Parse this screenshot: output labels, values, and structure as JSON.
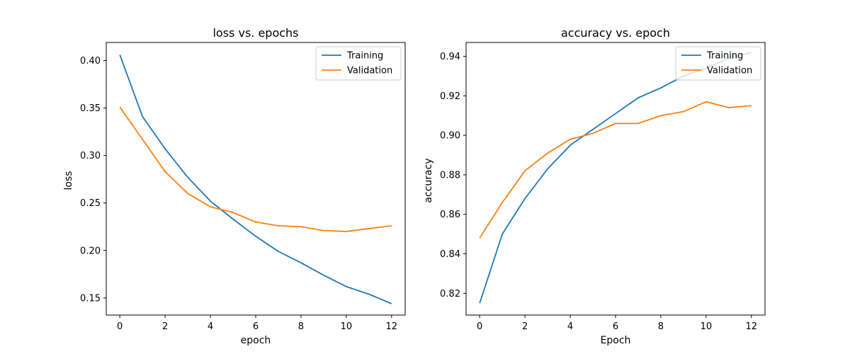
{
  "chart_data": [
    {
      "type": "line",
      "title": "loss vs. epochs",
      "xlabel": "epoch",
      "ylabel": "loss",
      "x": [
        0,
        1,
        2,
        3,
        4,
        5,
        6,
        7,
        8,
        9,
        10,
        11,
        12
      ],
      "xlim": [
        -0.6,
        12.6
      ],
      "ylim": [
        0.132,
        0.419
      ],
      "xticks": [
        0,
        2,
        4,
        6,
        8,
        10,
        12
      ],
      "yticks": [
        0.15,
        0.2,
        0.25,
        0.3,
        0.35,
        0.4
      ],
      "ytick_labels": [
        "0.15",
        "0.20",
        "0.25",
        "0.30",
        "0.35",
        "0.40"
      ],
      "grid": false,
      "legend_position": "upper right",
      "series": [
        {
          "name": "Training",
          "color": "#1f77b4",
          "values": [
            0.406,
            0.341,
            0.307,
            0.277,
            0.252,
            0.233,
            0.215,
            0.199,
            0.187,
            0.174,
            0.162,
            0.154,
            0.144
          ]
        },
        {
          "name": "Validation",
          "color": "#ff7f0e",
          "values": [
            0.351,
            0.317,
            0.283,
            0.26,
            0.246,
            0.24,
            0.23,
            0.226,
            0.225,
            0.221,
            0.22,
            0.223,
            0.226
          ]
        }
      ]
    },
    {
      "type": "line",
      "title": "accuracy vs. epoch",
      "xlabel": "Epoch",
      "ylabel": "accuracy",
      "x": [
        0,
        1,
        2,
        3,
        4,
        5,
        6,
        7,
        8,
        9,
        10,
        11,
        12
      ],
      "xlim": [
        -0.6,
        12.6
      ],
      "ylim": [
        0.809,
        0.947
      ],
      "xticks": [
        0,
        2,
        4,
        6,
        8,
        10,
        12
      ],
      "yticks": [
        0.82,
        0.84,
        0.86,
        0.88,
        0.9,
        0.92,
        0.94
      ],
      "ytick_labels": [
        "0.82",
        "0.84",
        "0.86",
        "0.88",
        "0.90",
        "0.92",
        "0.94"
      ],
      "grid": false,
      "legend_position": "upper right",
      "series": [
        {
          "name": "Training",
          "color": "#1f77b4",
          "values": [
            0.815,
            0.85,
            0.868,
            0.883,
            0.895,
            0.903,
            0.911,
            0.919,
            0.924,
            0.93,
            0.934,
            0.939,
            0.942
          ]
        },
        {
          "name": "Validation",
          "color": "#ff7f0e",
          "values": [
            0.848,
            0.866,
            0.882,
            0.891,
            0.898,
            0.901,
            0.906,
            0.906,
            0.91,
            0.912,
            0.917,
            0.914,
            0.915
          ]
        }
      ]
    }
  ]
}
